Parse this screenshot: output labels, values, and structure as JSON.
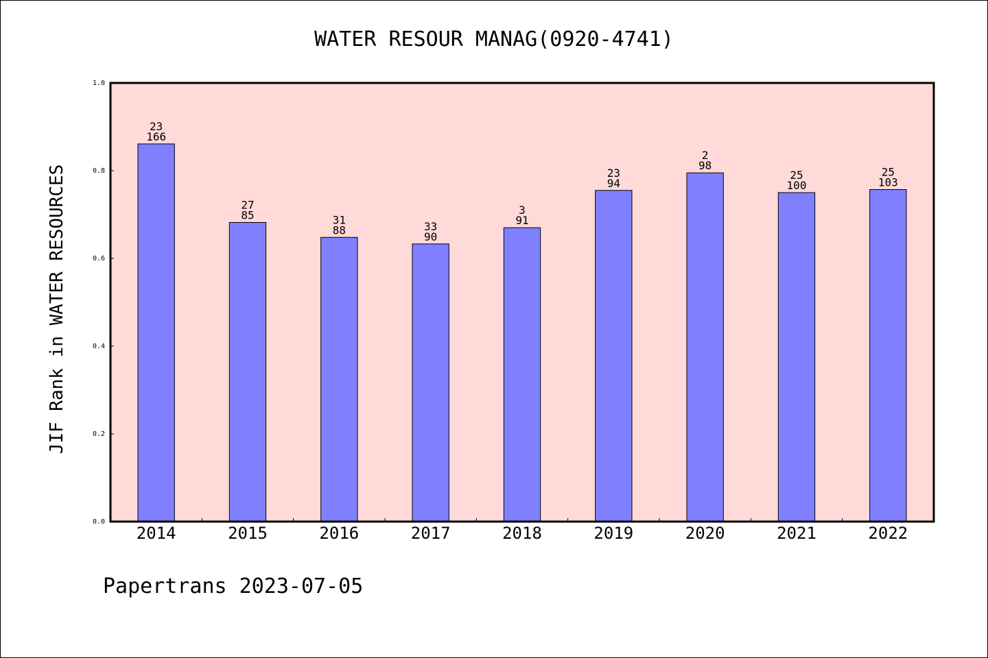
{
  "chart_data": {
    "type": "bar",
    "title": "WATER RESOUR MANAG(0920-4741)",
    "xlabel": "",
    "ylabel": "JIF Rank in WATER RESOURCES",
    "ylim": [
      0.0,
      1.0
    ],
    "yticks": [
      "0.0",
      "0.2",
      "0.4",
      "0.6",
      "0.8",
      "1.0"
    ],
    "ytick_values": [
      0.0,
      0.2,
      0.4,
      0.6,
      0.8,
      1.0
    ],
    "categories": [
      "2014",
      "2015",
      "2016",
      "2017",
      "2018",
      "2019",
      "2020",
      "2021",
      "2022"
    ],
    "values": [
      0.861,
      0.682,
      0.648,
      0.633,
      0.67,
      0.755,
      0.795,
      0.75,
      0.757
    ],
    "rank_labels": [
      "23",
      "27",
      "31",
      "33",
      "3",
      "23",
      "2",
      "25",
      "25"
    ],
    "total_labels": [
      "166",
      "85",
      "88",
      "90",
      "91",
      "94",
      "98",
      "100",
      "103"
    ],
    "colors": {
      "plot_background": "#ffdad8",
      "bar_fill": "#8080ff",
      "bar_edge": "#000000"
    },
    "grid": false
  },
  "footer": {
    "text": "Papertrans 2023-07-05"
  }
}
